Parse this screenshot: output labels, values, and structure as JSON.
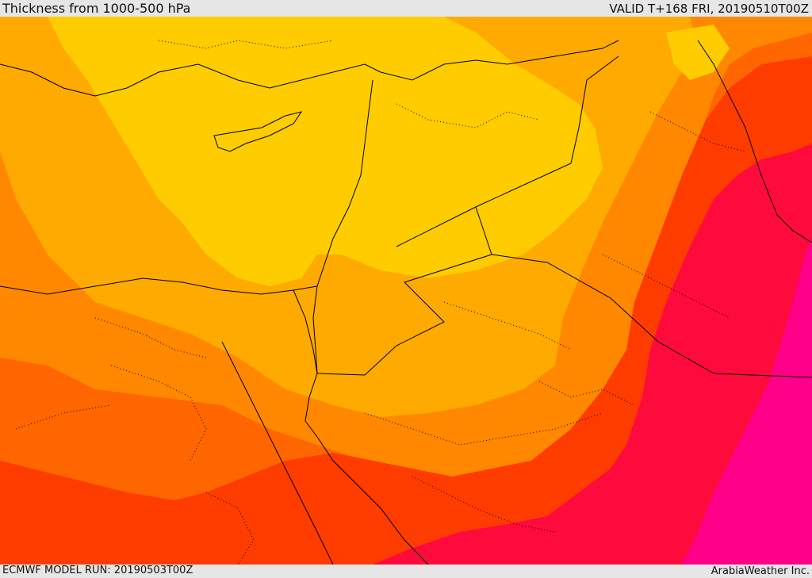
{
  "header": {
    "title": "Thickness from 1000-500 hPa",
    "valid": "VALID T+168 FRI, 20190510T00Z"
  },
  "footer": {
    "model_run": "ECMWF MODEL RUN: 20190503T00Z",
    "credit": "ArabiaWeather Inc."
  },
  "colors": {
    "band_1": "#ffcc00",
    "band_2": "#ffaa00",
    "band_3": "#ff8800",
    "band_4": "#ff6600",
    "band_5": "#ff3c00",
    "band_6": "#ff0a3c",
    "band_7": "#ff0088",
    "borders": "#000000"
  }
}
